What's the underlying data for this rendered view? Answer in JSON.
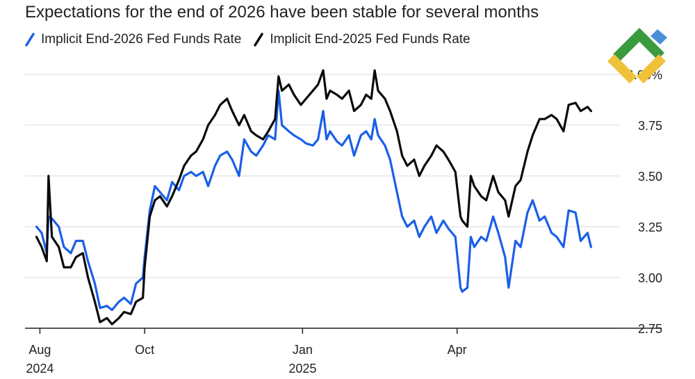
{
  "title": "Expectations for the end of 2026 have been stable for several months",
  "colors": {
    "series_2026": "#1a5fe8",
    "series_2025": "#0a0a0a",
    "grid": "#e6e6e6",
    "axis": "#222222"
  },
  "logo": {
    "icon": "logo-mark"
  },
  "chart_data": {
    "type": "line",
    "title": "Expectations for the end of 2026 have been stable for several months",
    "xlabel": "",
    "ylabel": "",
    "ylim": [
      2.75,
      4.0
    ],
    "yticks": [
      {
        "value": 2.75,
        "label": "2.75"
      },
      {
        "value": 3.0,
        "label": "3.00"
      },
      {
        "value": 3.25,
        "label": "3.25"
      },
      {
        "value": 3.5,
        "label": "3.50"
      },
      {
        "value": 3.75,
        "label": "3.75"
      },
      {
        "value": 4.0,
        "label": "4.00%"
      }
    ],
    "xlim": [
      "2024-07-29",
      "2025-06-30"
    ],
    "xticks": [
      {
        "date": "2024-08-01",
        "label": "Aug",
        "sublabel": "2024"
      },
      {
        "date": "2024-10-01",
        "label": "Oct",
        "sublabel": ""
      },
      {
        "date": "2025-01-01",
        "label": "Jan",
        "sublabel": "2025"
      },
      {
        "date": "2025-04-01",
        "label": "Apr",
        "sublabel": ""
      }
    ],
    "grid": true,
    "legend_position": "top-left",
    "series": [
      {
        "name": "Implicit End-2026 Fed Funds Rate",
        "color": "#1a5fe8",
        "points": [
          [
            "2024-07-30",
            3.25
          ],
          [
            "2024-08-02",
            3.22
          ],
          [
            "2024-08-05",
            3.12
          ],
          [
            "2024-08-06",
            3.3
          ],
          [
            "2024-08-08",
            3.29
          ],
          [
            "2024-08-12",
            3.25
          ],
          [
            "2024-08-15",
            3.15
          ],
          [
            "2024-08-19",
            3.12
          ],
          [
            "2024-08-22",
            3.18
          ],
          [
            "2024-08-26",
            3.18
          ],
          [
            "2024-08-29",
            3.08
          ],
          [
            "2024-09-02",
            2.97
          ],
          [
            "2024-09-05",
            2.85
          ],
          [
            "2024-09-09",
            2.86
          ],
          [
            "2024-09-12",
            2.84
          ],
          [
            "2024-09-16",
            2.88
          ],
          [
            "2024-09-19",
            2.9
          ],
          [
            "2024-09-23",
            2.87
          ],
          [
            "2024-09-26",
            2.97
          ],
          [
            "2024-09-30",
            3.0
          ],
          [
            "2024-10-01",
            3.1
          ],
          [
            "2024-10-04",
            3.33
          ],
          [
            "2024-10-07",
            3.45
          ],
          [
            "2024-10-10",
            3.42
          ],
          [
            "2024-10-14",
            3.38
          ],
          [
            "2024-10-17",
            3.47
          ],
          [
            "2024-10-21",
            3.43
          ],
          [
            "2024-10-24",
            3.5
          ],
          [
            "2024-10-28",
            3.52
          ],
          [
            "2024-10-31",
            3.5
          ],
          [
            "2024-11-04",
            3.52
          ],
          [
            "2024-11-07",
            3.45
          ],
          [
            "2024-11-11",
            3.55
          ],
          [
            "2024-11-14",
            3.6
          ],
          [
            "2024-11-18",
            3.62
          ],
          [
            "2024-11-21",
            3.58
          ],
          [
            "2024-11-25",
            3.5
          ],
          [
            "2024-11-28",
            3.68
          ],
          [
            "2024-12-02",
            3.62
          ],
          [
            "2024-12-05",
            3.6
          ],
          [
            "2024-12-09",
            3.65
          ],
          [
            "2024-12-12",
            3.7
          ],
          [
            "2024-12-16",
            3.68
          ],
          [
            "2024-12-18",
            3.92
          ],
          [
            "2024-12-20",
            3.75
          ],
          [
            "2024-12-24",
            3.72
          ],
          [
            "2024-12-27",
            3.7
          ],
          [
            "2024-12-31",
            3.68
          ],
          [
            "2025-01-03",
            3.66
          ],
          [
            "2025-01-07",
            3.65
          ],
          [
            "2025-01-10",
            3.68
          ],
          [
            "2025-01-13",
            3.82
          ],
          [
            "2025-01-15",
            3.68
          ],
          [
            "2025-01-17",
            3.72
          ],
          [
            "2025-01-21",
            3.67
          ],
          [
            "2025-01-24",
            3.65
          ],
          [
            "2025-01-28",
            3.7
          ],
          [
            "2025-01-31",
            3.6
          ],
          [
            "2025-02-04",
            3.7
          ],
          [
            "2025-02-07",
            3.72
          ],
          [
            "2025-02-10",
            3.68
          ],
          [
            "2025-02-12",
            3.78
          ],
          [
            "2025-02-14",
            3.7
          ],
          [
            "2025-02-18",
            3.65
          ],
          [
            "2025-02-21",
            3.58
          ],
          [
            "2025-02-25",
            3.42
          ],
          [
            "2025-02-28",
            3.3
          ],
          [
            "2025-03-03",
            3.25
          ],
          [
            "2025-03-07",
            3.28
          ],
          [
            "2025-03-10",
            3.2
          ],
          [
            "2025-03-13",
            3.25
          ],
          [
            "2025-03-17",
            3.3
          ],
          [
            "2025-03-20",
            3.22
          ],
          [
            "2025-03-24",
            3.28
          ],
          [
            "2025-03-27",
            3.24
          ],
          [
            "2025-03-31",
            3.2
          ],
          [
            "2025-04-03",
            2.95
          ],
          [
            "2025-04-04",
            2.93
          ],
          [
            "2025-04-07",
            2.95
          ],
          [
            "2025-04-09",
            3.2
          ],
          [
            "2025-04-11",
            3.15
          ],
          [
            "2025-04-15",
            3.2
          ],
          [
            "2025-04-18",
            3.18
          ],
          [
            "2025-04-22",
            3.3
          ],
          [
            "2025-04-25",
            3.22
          ],
          [
            "2025-04-29",
            3.1
          ],
          [
            "2025-05-01",
            2.95
          ],
          [
            "2025-05-05",
            3.18
          ],
          [
            "2025-05-08",
            3.15
          ],
          [
            "2025-05-12",
            3.32
          ],
          [
            "2025-05-15",
            3.38
          ],
          [
            "2025-05-19",
            3.28
          ],
          [
            "2025-05-22",
            3.3
          ],
          [
            "2025-05-26",
            3.22
          ],
          [
            "2025-05-29",
            3.2
          ],
          [
            "2025-06-02",
            3.15
          ],
          [
            "2025-06-05",
            3.33
          ],
          [
            "2025-06-09",
            3.32
          ],
          [
            "2025-06-12",
            3.18
          ],
          [
            "2025-06-16",
            3.22
          ],
          [
            "2025-06-18",
            3.15
          ]
        ]
      },
      {
        "name": "Implicit End-2025 Fed Funds Rate",
        "color": "#0a0a0a",
        "points": [
          [
            "2024-07-30",
            3.2
          ],
          [
            "2024-08-02",
            3.15
          ],
          [
            "2024-08-05",
            3.08
          ],
          [
            "2024-08-06",
            3.5
          ],
          [
            "2024-08-08",
            3.2
          ],
          [
            "2024-08-12",
            3.15
          ],
          [
            "2024-08-15",
            3.05
          ],
          [
            "2024-08-19",
            3.05
          ],
          [
            "2024-08-22",
            3.1
          ],
          [
            "2024-08-26",
            3.12
          ],
          [
            "2024-08-29",
            3.0
          ],
          [
            "2024-09-02",
            2.88
          ],
          [
            "2024-09-05",
            2.78
          ],
          [
            "2024-09-09",
            2.8
          ],
          [
            "2024-09-12",
            2.77
          ],
          [
            "2024-09-16",
            2.8
          ],
          [
            "2024-09-19",
            2.83
          ],
          [
            "2024-09-23",
            2.82
          ],
          [
            "2024-09-26",
            2.88
          ],
          [
            "2024-09-30",
            2.9
          ],
          [
            "2024-10-01",
            3.05
          ],
          [
            "2024-10-04",
            3.3
          ],
          [
            "2024-10-07",
            3.38
          ],
          [
            "2024-10-10",
            3.4
          ],
          [
            "2024-10-14",
            3.35
          ],
          [
            "2024-10-17",
            3.4
          ],
          [
            "2024-10-21",
            3.48
          ],
          [
            "2024-10-24",
            3.55
          ],
          [
            "2024-10-28",
            3.6
          ],
          [
            "2024-10-31",
            3.62
          ],
          [
            "2024-11-04",
            3.68
          ],
          [
            "2024-11-07",
            3.75
          ],
          [
            "2024-11-11",
            3.8
          ],
          [
            "2024-11-14",
            3.85
          ],
          [
            "2024-11-18",
            3.88
          ],
          [
            "2024-11-21",
            3.82
          ],
          [
            "2024-11-25",
            3.75
          ],
          [
            "2024-11-28",
            3.8
          ],
          [
            "2024-12-02",
            3.72
          ],
          [
            "2024-12-05",
            3.7
          ],
          [
            "2024-12-09",
            3.68
          ],
          [
            "2024-12-12",
            3.72
          ],
          [
            "2024-12-16",
            3.78
          ],
          [
            "2024-12-18",
            3.99
          ],
          [
            "2024-12-20",
            3.92
          ],
          [
            "2024-12-24",
            3.95
          ],
          [
            "2024-12-27",
            3.9
          ],
          [
            "2024-12-31",
            3.85
          ],
          [
            "2025-01-03",
            3.88
          ],
          [
            "2025-01-07",
            3.92
          ],
          [
            "2025-01-10",
            3.95
          ],
          [
            "2025-01-13",
            4.02
          ],
          [
            "2025-01-15",
            3.88
          ],
          [
            "2025-01-17",
            3.92
          ],
          [
            "2025-01-21",
            3.9
          ],
          [
            "2025-01-24",
            3.88
          ],
          [
            "2025-01-28",
            3.92
          ],
          [
            "2025-01-31",
            3.82
          ],
          [
            "2025-02-04",
            3.85
          ],
          [
            "2025-02-07",
            3.9
          ],
          [
            "2025-02-10",
            3.88
          ],
          [
            "2025-02-12",
            4.02
          ],
          [
            "2025-02-14",
            3.92
          ],
          [
            "2025-02-18",
            3.88
          ],
          [
            "2025-02-21",
            3.82
          ],
          [
            "2025-02-25",
            3.72
          ],
          [
            "2025-02-28",
            3.6
          ],
          [
            "2025-03-03",
            3.55
          ],
          [
            "2025-03-07",
            3.58
          ],
          [
            "2025-03-10",
            3.5
          ],
          [
            "2025-03-13",
            3.55
          ],
          [
            "2025-03-17",
            3.6
          ],
          [
            "2025-03-20",
            3.65
          ],
          [
            "2025-03-24",
            3.62
          ],
          [
            "2025-03-27",
            3.58
          ],
          [
            "2025-03-31",
            3.52
          ],
          [
            "2025-04-03",
            3.3
          ],
          [
            "2025-04-04",
            3.28
          ],
          [
            "2025-04-07",
            3.25
          ],
          [
            "2025-04-09",
            3.5
          ],
          [
            "2025-04-11",
            3.45
          ],
          [
            "2025-04-15",
            3.4
          ],
          [
            "2025-04-18",
            3.38
          ],
          [
            "2025-04-22",
            3.5
          ],
          [
            "2025-04-25",
            3.42
          ],
          [
            "2025-04-29",
            3.38
          ],
          [
            "2025-05-01",
            3.3
          ],
          [
            "2025-05-05",
            3.45
          ],
          [
            "2025-05-08",
            3.48
          ],
          [
            "2025-05-12",
            3.62
          ],
          [
            "2025-05-15",
            3.7
          ],
          [
            "2025-05-19",
            3.78
          ],
          [
            "2025-05-22",
            3.78
          ],
          [
            "2025-05-26",
            3.8
          ],
          [
            "2025-05-29",
            3.78
          ],
          [
            "2025-06-02",
            3.72
          ],
          [
            "2025-06-05",
            3.85
          ],
          [
            "2025-06-09",
            3.86
          ],
          [
            "2025-06-12",
            3.82
          ],
          [
            "2025-06-16",
            3.84
          ],
          [
            "2025-06-18",
            3.82
          ]
        ]
      }
    ]
  }
}
